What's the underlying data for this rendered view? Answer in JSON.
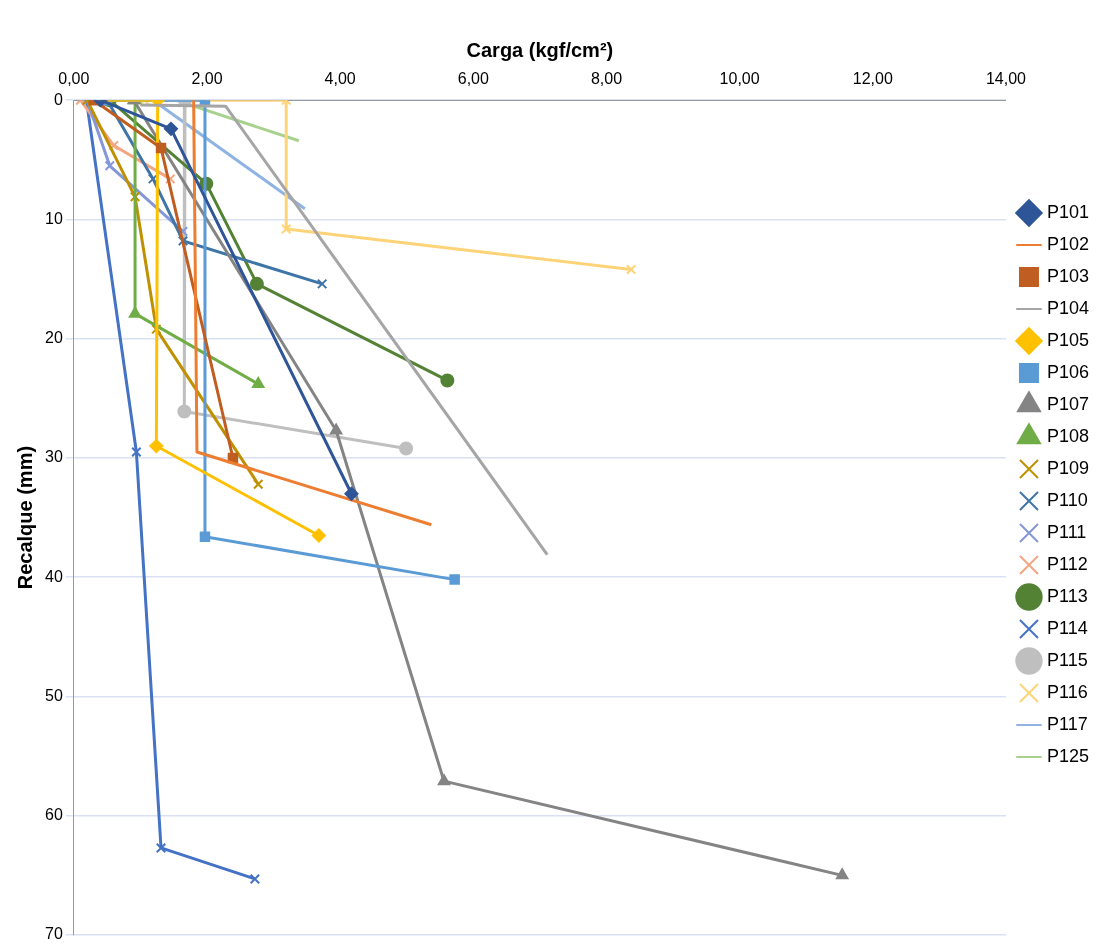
{
  "chart_data": {
    "type": "line",
    "xlabel": "Carga (kgf/cm²)",
    "ylabel": "Recalque (mm)",
    "xlim": [
      0,
      14
    ],
    "xticks": [
      {
        "value": 0,
        "label": "0,00"
      },
      {
        "value": 2,
        "label": "2,00"
      },
      {
        "value": 4,
        "label": "4,00"
      },
      {
        "value": 6,
        "label": "6,00"
      },
      {
        "value": 8,
        "label": "8,00"
      },
      {
        "value": 10,
        "label": "10,00"
      },
      {
        "value": 12,
        "label": "12,00"
      },
      {
        "value": 14,
        "label": "14,00"
      }
    ],
    "ylim": [
      70,
      0
    ],
    "yticks": [
      0,
      10,
      20,
      30,
      40,
      50,
      60,
      70
    ],
    "grid": "y",
    "legend": "right",
    "series": [
      {
        "name": "P101",
        "color": "#2e5597",
        "marker": "diamond",
        "x": [
          0.4,
          1.46,
          4.17
        ],
        "values": [
          0,
          2.4,
          33.0
        ]
      },
      {
        "name": "P102",
        "color": "#ed7d31",
        "marker": "none",
        "x": [
          1.8,
          1.85,
          5.37
        ],
        "values": [
          0,
          29.5,
          35.6
        ]
      },
      {
        "name": "P103",
        "color": "#c05e22",
        "marker": "square",
        "x": [
          0.3,
          1.31,
          2.39
        ],
        "values": [
          0,
          4.0,
          30.0
        ]
      },
      {
        "name": "P104",
        "color": "#a5a5a5",
        "marker": "none",
        "x": [
          1.0,
          2.28,
          7.11
        ],
        "values": [
          0.4,
          0.5,
          38.1
        ]
      },
      {
        "name": "P105",
        "color": "#ffc000",
        "marker": "diamond",
        "x": [
          0.4,
          1.26,
          1.24,
          3.68
        ],
        "values": [
          0,
          0,
          29.0,
          36.5
        ]
      },
      {
        "name": "P106",
        "color": "#5b9bd5",
        "marker": "square",
        "x": [
          0.5,
          1.97,
          1.97,
          5.72
        ],
        "values": [
          0,
          0,
          36.6,
          40.2
        ]
      },
      {
        "name": "P107",
        "color": "#848484",
        "marker": "triangle",
        "x": [
          0.9,
          3.94,
          5.56,
          11.54
        ],
        "values": [
          0,
          27.7,
          57.1,
          65.0
        ]
      },
      {
        "name": "P108",
        "color": "#70ad47",
        "marker": "triangle",
        "x": [
          0.4,
          0.92,
          0.92,
          2.77
        ],
        "values": [
          0,
          0,
          17.9,
          23.8
        ]
      },
      {
        "name": "P109",
        "color": "#bf9000",
        "marker": "cross",
        "x": [
          0.2,
          0.92,
          1.24,
          2.77
        ],
        "values": [
          0,
          8.1,
          19.2,
          32.2
        ]
      },
      {
        "name": "P110",
        "color": "#3e75a6",
        "marker": "cross",
        "x": [
          0.5,
          1.19,
          1.64,
          3.73
        ],
        "values": [
          0,
          6.6,
          11.8,
          15.4
        ]
      },
      {
        "name": "P111",
        "color": "#8497d8",
        "marker": "cross",
        "x": [
          0.2,
          0.54,
          1.64
        ],
        "values": [
          0,
          5.5,
          11.0
        ]
      },
      {
        "name": "P112",
        "color": "#f4a582",
        "marker": "cross",
        "x": [
          0.1,
          0.6,
          1.45
        ],
        "values": [
          0,
          3.8,
          6.6
        ]
      },
      {
        "name": "P113",
        "color": "#548235",
        "marker": "circle",
        "x": [
          0.54,
          1.99,
          2.75,
          5.61
        ],
        "values": [
          0,
          7.0,
          15.4,
          23.5
        ]
      },
      {
        "name": "P114",
        "color": "#4472c4",
        "marker": "cross",
        "x": [
          0.19,
          0.94,
          1.31,
          2.72
        ],
        "values": [
          0,
          29.5,
          62.7,
          65.3
        ]
      },
      {
        "name": "P115",
        "color": "#bfbfbf",
        "marker": "circle",
        "x": [
          0.42,
          1.67,
          1.66,
          4.99
        ],
        "values": [
          0,
          0,
          26.1,
          29.2
        ]
      },
      {
        "name": "P116",
        "color": "#ffd478",
        "marker": "cross",
        "x": [
          1.06,
          3.19,
          3.19,
          8.37
        ],
        "values": [
          0,
          0,
          10.8,
          14.2
        ]
      },
      {
        "name": "P117",
        "color": "#8fb4e3",
        "marker": "none",
        "x": [
          1.19,
          3.47
        ],
        "values": [
          0,
          9.1
        ]
      },
      {
        "name": "P125",
        "color": "#a9d18e",
        "marker": "none",
        "x": [
          1.53,
          3.38
        ],
        "values": [
          0,
          3.4
        ]
      }
    ]
  }
}
